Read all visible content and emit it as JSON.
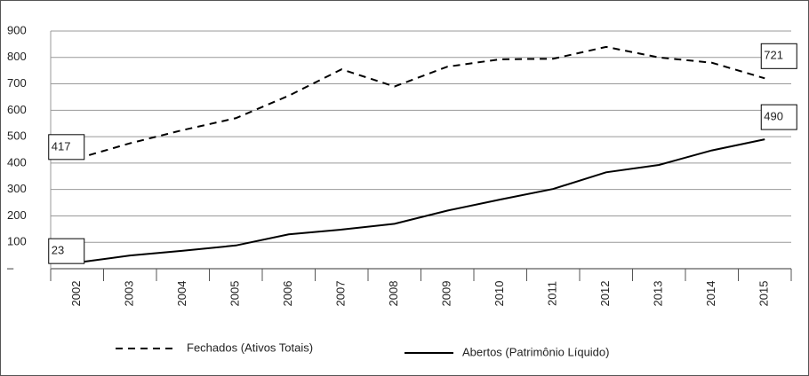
{
  "chart_data": {
    "type": "line",
    "categories": [
      "2002",
      "2003",
      "2004",
      "2005",
      "2006",
      "2007",
      "2008",
      "2009",
      "2010",
      "2011",
      "2012",
      "2013",
      "2014",
      "2015"
    ],
    "series": [
      {
        "name": "Fechados (Ativos Totais)",
        "color": "#000000",
        "style": "dashed",
        "values": [
          417,
          475,
          525,
          570,
          655,
          755,
          690,
          765,
          793,
          795,
          840,
          800,
          780,
          721
        ]
      },
      {
        "name": "Abertos (Patrimônio Líquido)",
        "color": "#000000",
        "style": "solid",
        "values": [
          23,
          50,
          68,
          88,
          130,
          148,
          170,
          220,
          262,
          302,
          365,
          393,
          448,
          490
        ]
      }
    ],
    "ylim": [
      0,
      900
    ],
    "yticks": [
      {
        "value": 0,
        "label": "–"
      },
      100,
      200,
      300,
      400,
      500,
      600,
      700,
      800,
      900
    ],
    "grid": true
  }
}
